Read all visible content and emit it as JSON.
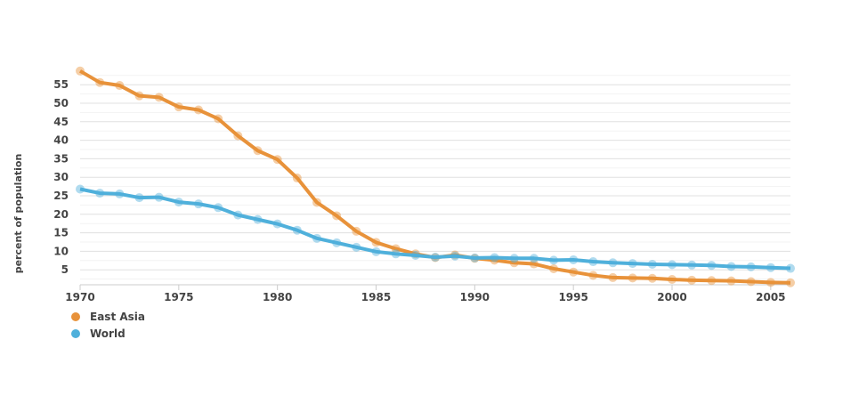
{
  "chart_data": {
    "type": "line",
    "title": "",
    "xlabel": "",
    "ylabel": "percent of population",
    "x": [
      1970,
      1971,
      1972,
      1973,
      1974,
      1975,
      1976,
      1977,
      1978,
      1979,
      1980,
      1981,
      1982,
      1983,
      1984,
      1985,
      1986,
      1987,
      1988,
      1989,
      1990,
      1991,
      1992,
      1993,
      1994,
      1995,
      1996,
      1997,
      1998,
      1999,
      2000,
      2001,
      2002,
      2003,
      2004,
      2005,
      2006
    ],
    "xticks": [
      "1970",
      "1975",
      "1980",
      "1985",
      "1990",
      "1995",
      "2000",
      "2005"
    ],
    "yticks": [
      "5",
      "10",
      "15",
      "20",
      "25",
      "30",
      "35",
      "40",
      "45",
      "50",
      "55"
    ],
    "xlim": [
      1970,
      2006
    ],
    "ylim": [
      0,
      58
    ],
    "grid": true,
    "legend_placement": "bottom-left",
    "series": [
      {
        "name": "East Asia",
        "color": "#e8923a",
        "values": [
          58.7,
          55.6,
          54.8,
          52.0,
          51.6,
          49.0,
          48.2,
          45.8,
          41.2,
          37.2,
          34.8,
          29.8,
          23.2,
          19.6,
          15.4,
          12.4,
          10.7,
          9.3,
          8.3,
          9.0,
          8.1,
          7.6,
          6.9,
          6.6,
          5.3,
          4.4,
          3.5,
          2.9,
          2.8,
          2.7,
          2.4,
          2.2,
          2.1,
          2.0,
          1.8,
          1.6,
          1.5
        ]
      },
      {
        "name": "World",
        "color": "#4fb0db",
        "values": [
          26.8,
          25.7,
          25.5,
          24.5,
          24.6,
          23.3,
          22.8,
          21.8,
          19.8,
          18.6,
          17.4,
          15.7,
          13.5,
          12.3,
          11.1,
          9.9,
          9.3,
          8.9,
          8.4,
          8.7,
          8.2,
          8.3,
          8.1,
          8.1,
          7.6,
          7.7,
          7.2,
          6.9,
          6.7,
          6.5,
          6.4,
          6.3,
          6.2,
          5.9,
          5.8,
          5.6,
          5.4
        ]
      }
    ]
  }
}
